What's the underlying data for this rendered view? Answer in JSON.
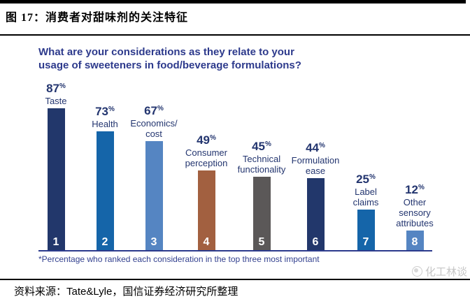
{
  "header": {
    "title": "图 17：消费者对甜味剂的关注特征"
  },
  "chart": {
    "question_line1": "What are your considerations as they relate to your",
    "question_line2": "usage of sweeteners in food/beverage formulations?",
    "footnote": "*Percentage who ranked each consideration in the top three most important"
  },
  "chart_data": {
    "type": "bar",
    "title": "What are your considerations as they relate to your usage of sweeteners in food/beverage formulations?",
    "categories": [
      "Taste",
      "Health",
      "Economics/cost",
      "Consumer perception",
      "Technical functionality",
      "Formulation ease",
      "Label claims",
      "Other sensory attributes"
    ],
    "values": [
      87,
      73,
      67,
      49,
      45,
      44,
      25,
      12
    ],
    "unit": "%",
    "rank_labels": [
      "1",
      "2",
      "3",
      "4",
      "5",
      "6",
      "7",
      "8"
    ],
    "label_lines": [
      [
        "Taste"
      ],
      [
        "Health"
      ],
      [
        "Economics/",
        "cost"
      ],
      [
        "Consumer",
        "perception"
      ],
      [
        "Technical",
        "functionality"
      ],
      [
        "Formulation",
        "ease"
      ],
      [
        "Label",
        "claims"
      ],
      [
        "Other",
        "sensory",
        "attributes"
      ]
    ],
    "bar_colors": [
      "#22376B",
      "#1565A9",
      "#5585C2",
      "#A26040",
      "#5B5858",
      "#22376B",
      "#1565A9",
      "#5585C2"
    ],
    "value_label_color": "#23356F",
    "question_color": "#2D3A8C",
    "axis_line_color": "#2B3A8C",
    "ylim": [
      0,
      100
    ],
    "grid": false,
    "legend": false,
    "footnote": "*Percentage who ranked each consideration in the top three most important"
  },
  "footer": {
    "source_prefix": "资料来源：",
    "source_name": "Tate&Lyle",
    "source_suffix": "，国信证券经济研究所整理",
    "watermark": "化工林谈"
  }
}
